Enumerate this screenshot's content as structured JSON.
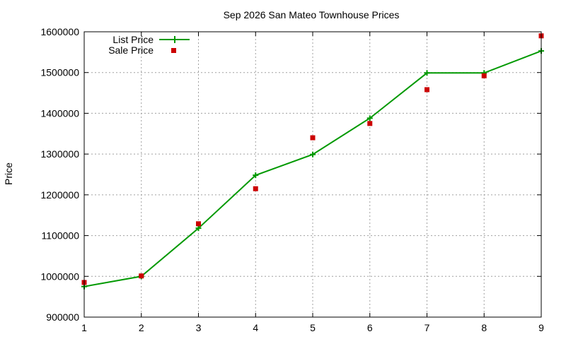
{
  "chart_data": {
    "type": "line",
    "title": "Sep 2026 San Mateo Townhouse Prices",
    "xlabel": "",
    "ylabel": "Price",
    "x": [
      1,
      2,
      3,
      4,
      5,
      6,
      7,
      8,
      9
    ],
    "xlim": [
      1,
      9
    ],
    "ylim": [
      900000,
      1600000
    ],
    "xticks": [
      "1",
      "2",
      "3",
      "4",
      "5",
      "6",
      "7",
      "8",
      "9"
    ],
    "yticks": [
      "900000",
      "1000000",
      "1100000",
      "1200000",
      "1300000",
      "1400000",
      "1500000",
      "1600000"
    ],
    "grid": true,
    "legend_position": "top-left",
    "series": [
      {
        "name": "List Price",
        "style": "line-with-plus-markers",
        "color": "#009900",
        "values": [
          975000,
          1000000,
          1118000,
          1248000,
          1299000,
          1388000,
          1499000,
          1499000,
          1553000
        ]
      },
      {
        "name": "Sale Price",
        "style": "square-markers",
        "color": "#cc0000",
        "values": [
          985000,
          1001000,
          1129000,
          1215000,
          1340000,
          1375000,
          1458000,
          1492000,
          1590000
        ]
      }
    ]
  }
}
